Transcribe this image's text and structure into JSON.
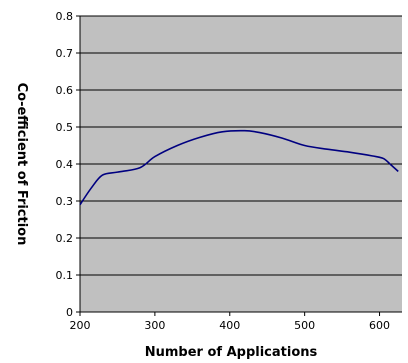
{
  "chart_data": {
    "type": "line",
    "xlabel": "Number of Applications",
    "ylabel": "Co-efficient of Friction",
    "xlim": [
      200,
      630
    ],
    "ylim": [
      0,
      0.8
    ],
    "x_ticks": [
      "200",
      "300",
      "400",
      "500",
      "600"
    ],
    "y_ticks": [
      "0",
      "0.1",
      "0.2",
      "0.3",
      "0.4",
      "0.5",
      "0.6",
      "0.7",
      "0.8"
    ],
    "grid": true,
    "legend": "none",
    "series": [
      {
        "x": [
          200,
          215,
          230,
          250,
          280,
          300,
          330,
          360,
          390,
          420,
          440,
          470,
          500,
          530,
          560,
          590,
          605,
          615,
          625
        ],
        "y": [
          0.29,
          0.335,
          0.37,
          0.378,
          0.39,
          0.42,
          0.45,
          0.472,
          0.487,
          0.49,
          0.485,
          0.47,
          0.45,
          0.44,
          0.432,
          0.422,
          0.415,
          0.398,
          0.38
        ]
      }
    ],
    "colors": {
      "plot_background": "#c0c0c0",
      "line": "#000080",
      "gridline": "#000000"
    }
  }
}
